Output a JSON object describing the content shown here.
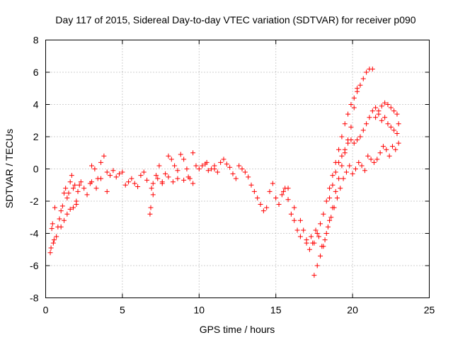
{
  "chart_data": {
    "type": "scatter",
    "title": "Day 117 of 2015, Sidereal Day-to-day VTEC variation (SDTVAR) for receiver p090",
    "xlabel": "GPS time / hours",
    "ylabel": "SDTVAR / TECUs",
    "xlim": [
      0,
      25
    ],
    "ylim": [
      -8,
      8
    ],
    "x_ticks": [
      0,
      5,
      10,
      15,
      20,
      25
    ],
    "y_ticks": [
      -8,
      -6,
      -4,
      -2,
      0,
      2,
      4,
      6,
      8
    ],
    "grid": true,
    "marker": "plus",
    "series_color": "#ff0000",
    "series": [
      {
        "name": "SDTVAR",
        "x": [
          0.3,
          0.35,
          0.4,
          0.45,
          0.5,
          0.55,
          0.6,
          0.7,
          0.8,
          0.9,
          1.0,
          1.1,
          1.2,
          1.3,
          1.4,
          1.5,
          1.6,
          1.7,
          1.8,
          1.9,
          2.0,
          2.1,
          2.2,
          2.3,
          2.5,
          2.7,
          2.9,
          3.0,
          3.2,
          3.4,
          3.6,
          3.8,
          4.0,
          4.2,
          4.4,
          4.6,
          4.8,
          5.0,
          5.2,
          5.4,
          5.6,
          5.8,
          6.0,
          6.2,
          6.4,
          6.6,
          6.8,
          6.85,
          6.9,
          7.0,
          7.2,
          7.4,
          7.6,
          7.8,
          8.0,
          8.2,
          8.4,
          8.6,
          8.8,
          9.0,
          9.2,
          9.4,
          9.6,
          9.8,
          10.0,
          10.2,
          10.4,
          10.6,
          10.8,
          11.0,
          11.2,
          11.4,
          11.6,
          11.8,
          12.0,
          12.2,
          12.4,
          12.6,
          12.8,
          13.0,
          13.2,
          13.4,
          13.6,
          13.8,
          14.0,
          14.2,
          14.4,
          14.6,
          14.8,
          15.0,
          15.2,
          15.4,
          15.6,
          15.8,
          16.0,
          16.2,
          16.4,
          16.6,
          16.8,
          17.0,
          17.2,
          17.4,
          17.6,
          17.8,
          18.0,
          18.2,
          18.4,
          18.6,
          18.8,
          19.0,
          19.2,
          19.4,
          19.6,
          19.8,
          20.0,
          20.2,
          20.4,
          20.6,
          20.8,
          21.0,
          21.2,
          21.4,
          21.6,
          21.8,
          22.0,
          22.2,
          22.4,
          22.6,
          22.8,
          23.0,
          1.0,
          1.2,
          1.4,
          1.6,
          1.8,
          2.0,
          3.0,
          3.3,
          3.6,
          4.0,
          7.0,
          7.3,
          7.6,
          8.0,
          8.3,
          8.6,
          9.0,
          9.3,
          9.6,
          10.5,
          11.0,
          15.5,
          15.8,
          16.2,
          16.6,
          17.0,
          17.3,
          17.5,
          17.7,
          17.9,
          18.1,
          18.3,
          18.5,
          18.7,
          18.9,
          19.1,
          19.3,
          19.5,
          19.7,
          19.9,
          20.1,
          20.3,
          17.5,
          17.7,
          17.9,
          18.1,
          18.3,
          18.5,
          18.7,
          18.9,
          19.1,
          19.3,
          19.5,
          19.7,
          19.9,
          20.1,
          20.3,
          20.5,
          20.7,
          20.9,
          21.1,
          21.3,
          21.5,
          21.7,
          21.9,
          22.1,
          22.3,
          22.5,
          22.7,
          22.9,
          23.0,
          18.5,
          18.7,
          18.9,
          19.1,
          19.3,
          19.5,
          19.7,
          19.9,
          20.1,
          20.3,
          20.5,
          20.7,
          20.9,
          21.1,
          21.3,
          21.5,
          21.7,
          21.9,
          22.1,
          22.3,
          22.5,
          22.7,
          22.9
        ],
        "y": [
          -5.2,
          -4.9,
          -3.7,
          -3.4,
          -4.6,
          -4.4,
          -2.4,
          -4.2,
          -3.6,
          -3.1,
          -2.6,
          -2.3,
          -1.5,
          -1.2,
          -1.8,
          -1.5,
          -0.8,
          -0.4,
          -1.2,
          -1.0,
          -2.0,
          -1.4,
          -1.0,
          -0.8,
          -1.2,
          -1.6,
          -0.9,
          0.2,
          0.0,
          -0.6,
          0.4,
          0.8,
          -0.2,
          -0.4,
          -0.1,
          -0.5,
          -0.3,
          -0.2,
          -1.0,
          -0.8,
          -0.6,
          -0.9,
          -1.1,
          -0.4,
          -0.2,
          -0.7,
          -2.8,
          -2.4,
          -1.2,
          -0.9,
          -0.4,
          0.2,
          -0.8,
          -0.3,
          0.8,
          0.6,
          0.2,
          -0.1,
          0.9,
          0.6,
          0.0,
          -0.6,
          1.0,
          0.2,
          0.0,
          0.2,
          0.3,
          -0.1,
          0.0,
          0.2,
          -0.2,
          0.4,
          0.6,
          0.3,
          0.1,
          -0.3,
          -0.6,
          0.2,
          0.0,
          -0.2,
          -0.5,
          -1.0,
          -1.4,
          -1.8,
          -2.2,
          -2.6,
          -2.4,
          -1.4,
          -0.9,
          -1.8,
          -2.2,
          -1.6,
          -1.2,
          -1.9,
          -2.8,
          -3.2,
          -3.8,
          -4.2,
          -3.8,
          -4.4,
          -5.0,
          -4.6,
          -3.8,
          -4.2,
          -4.8,
          -4.4,
          -3.6,
          -3.0,
          -2.4,
          -1.8,
          -1.2,
          -0.6,
          -0.2,
          0.2,
          -0.3,
          0.0,
          0.4,
          0.2,
          -0.1,
          0.8,
          0.6,
          0.4,
          0.6,
          1.0,
          1.4,
          1.2,
          0.8,
          1.4,
          1.2,
          1.6,
          -3.6,
          -3.2,
          -2.8,
          -2.5,
          -2.4,
          -2.2,
          -0.8,
          -1.2,
          -0.6,
          -1.4,
          -1.6,
          -0.6,
          -0.9,
          -0.5,
          -0.8,
          -0.6,
          -0.7,
          -0.5,
          -0.9,
          0.4,
          0.0,
          -1.4,
          -1.2,
          -2.4,
          -3.2,
          -4.6,
          -4.2,
          -6.6,
          -6.0,
          -5.4,
          -4.8,
          -4.0,
          -3.2,
          -2.4,
          -1.4,
          -0.6,
          0.2,
          1.0,
          1.8,
          2.6,
          3.8,
          5.0,
          -4.6,
          -4.0,
          -3.4,
          -2.8,
          -2.0,
          -1.2,
          -0.4,
          0.4,
          1.2,
          2.0,
          2.8,
          3.4,
          4.0,
          4.4,
          4.8,
          5.2,
          5.6,
          6.0,
          6.2,
          6.2,
          3.2,
          3.6,
          3.9,
          4.1,
          4.0,
          3.8,
          3.6,
          3.4,
          2.8,
          -1.8,
          -1.0,
          -0.2,
          0.4,
          0.8,
          1.2,
          1.6,
          1.8,
          1.6,
          1.8,
          2.0,
          2.4,
          2.8,
          3.2,
          3.6,
          3.8,
          3.4,
          3.0,
          3.2,
          2.8,
          2.6,
          2.4,
          2.2
        ]
      }
    ]
  }
}
